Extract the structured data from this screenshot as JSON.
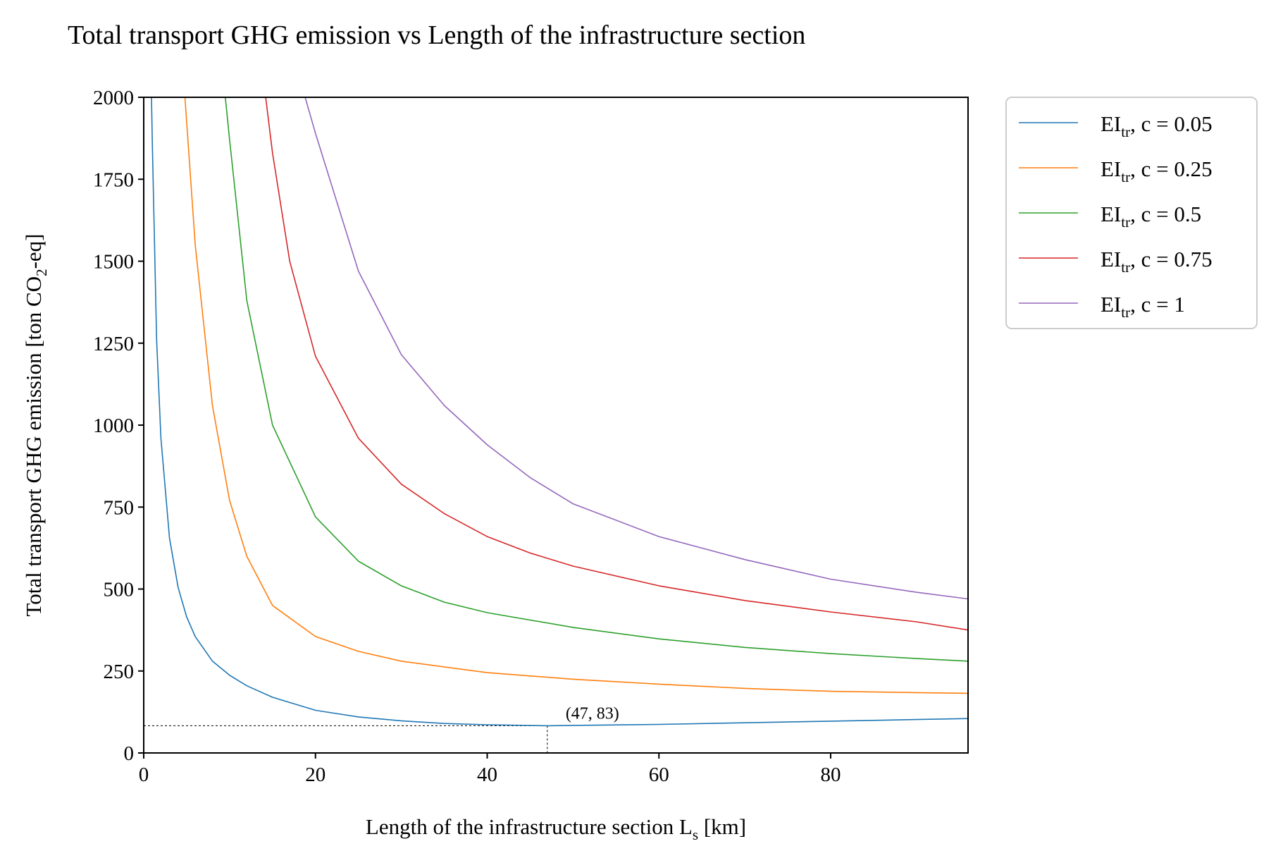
{
  "chart_data": {
    "type": "line",
    "title": "Total transport GHG emission vs Length of the infrastructure section",
    "xlabel": {
      "pre": "Length of the infrastructure section L",
      "sub": "s",
      "post": " [km]"
    },
    "ylabel": {
      "pre": "Total transport GHG emission [ton CO",
      "sub": "2",
      "post": "-eq]"
    },
    "xlim": [
      0,
      96
    ],
    "ylim": [
      0,
      2000
    ],
    "xticks": [
      0,
      20,
      40,
      60,
      80
    ],
    "xtick_labels": [
      "0",
      "20",
      "40",
      "60",
      "80"
    ],
    "yticks": [
      0,
      250,
      500,
      750,
      1000,
      1250,
      1500,
      1750,
      2000
    ],
    "ytick_labels": [
      "0",
      "250",
      "500",
      "750",
      "1000",
      "1250",
      "1500",
      "1750",
      "2000"
    ],
    "grid": false,
    "legend_position": "outside-right-top",
    "series": [
      {
        "name": "EI",
        "name_sub": "tr",
        "name_suffix": ", c = 0.05",
        "color": "#1f77b4",
        "x": [
          0.9,
          1,
          1.5,
          2,
          3,
          4,
          5,
          6,
          8,
          10,
          12,
          15,
          20,
          25,
          30,
          35,
          40,
          47,
          50,
          60,
          70,
          80,
          90,
          96
        ],
        "y": [
          2000,
          1860,
          1260,
          960,
          655,
          505,
          415,
          355,
          280,
          237,
          205,
          170,
          130,
          110,
          98,
          90,
          86,
          83,
          84,
          87,
          92,
          97,
          102,
          105
        ]
      },
      {
        "name": "EI",
        "name_sub": "tr",
        "name_suffix": ", c = 0.25",
        "color": "#ff7f0e",
        "x": [
          4.8,
          6,
          8,
          10,
          12,
          15,
          20,
          25,
          30,
          40,
          50,
          60,
          70,
          80,
          90,
          96
        ],
        "y": [
          2000,
          1550,
          1060,
          770,
          600,
          450,
          355,
          310,
          280,
          245,
          225,
          210,
          197,
          188,
          184,
          182
        ]
      },
      {
        "name": "EI",
        "name_sub": "tr",
        "name_suffix": ", c = 0.5",
        "color": "#2ca02c",
        "x": [
          9.5,
          10,
          12,
          15,
          20,
          25,
          30,
          35,
          40,
          50,
          60,
          70,
          80,
          90,
          96
        ],
        "y": [
          2000,
          1870,
          1380,
          1000,
          720,
          585,
          510,
          460,
          428,
          383,
          348,
          322,
          303,
          288,
          280
        ]
      },
      {
        "name": "EI",
        "name_sub": "tr",
        "name_suffix": ", c = 0.75",
        "color": "#d62728",
        "x": [
          14.2,
          15,
          17,
          20,
          25,
          30,
          35,
          40,
          45,
          50,
          60,
          70,
          80,
          90,
          96
        ],
        "y": [
          2000,
          1830,
          1500,
          1210,
          960,
          820,
          730,
          660,
          610,
          570,
          510,
          465,
          430,
          400,
          375
        ]
      },
      {
        "name": "EI",
        "name_sub": "tr",
        "name_suffix": ", c = 1",
        "color": "#9467bd",
        "x": [
          18.8,
          20,
          25,
          30,
          35,
          40,
          45,
          50,
          60,
          70,
          80,
          90,
          96
        ],
        "y": [
          2000,
          1890,
          1470,
          1215,
          1060,
          940,
          840,
          760,
          660,
          590,
          530,
          490,
          470
        ]
      }
    ],
    "annotation": {
      "text": "(47, 83)",
      "x": 47,
      "y": 83
    }
  }
}
